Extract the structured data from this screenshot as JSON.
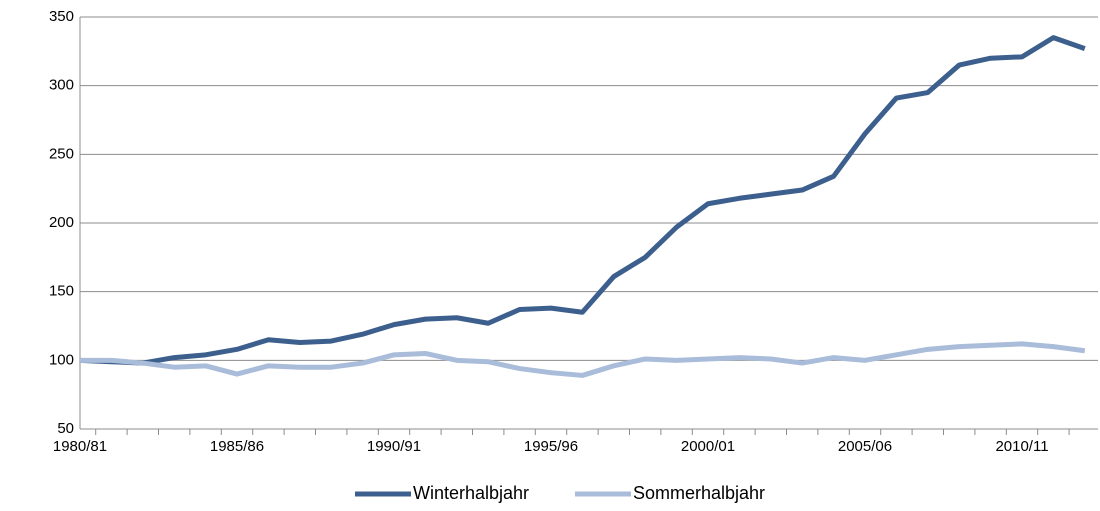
{
  "chart_data": {
    "type": "line",
    "categories": [
      "1980/81",
      null,
      null,
      null,
      null,
      "1985/86",
      null,
      null,
      null,
      null,
      "1990/91",
      null,
      null,
      null,
      null,
      "1995/96",
      null,
      null,
      null,
      null,
      "2000/01",
      null,
      null,
      null,
      null,
      "2005/06",
      null,
      null,
      null,
      null,
      "2010/11",
      null,
      null
    ],
    "series": [
      {
        "name": "Winterhalbjahr",
        "color": "#3d5f8d",
        "values": [
          100,
          99,
          98,
          102,
          104,
          108,
          115,
          113,
          114,
          119,
          126,
          130,
          131,
          127,
          137,
          138,
          135,
          161,
          175,
          197,
          214,
          218,
          221,
          224,
          234,
          265,
          291,
          295,
          315,
          320,
          321,
          335,
          327
        ]
      },
      {
        "name": "Sommerhalbjahr",
        "color": "#a9bcd9",
        "values": [
          100,
          100,
          98,
          95,
          96,
          90,
          96,
          95,
          95,
          98,
          104,
          105,
          100,
          99,
          94,
          91,
          89,
          96,
          101,
          100,
          101,
          102,
          101,
          98,
          102,
          100,
          104,
          108,
          110,
          111,
          112,
          110,
          107
        ]
      }
    ],
    "ylim": [
      50,
      350
    ],
    "yticks": [
      50,
      100,
      150,
      200,
      250,
      300,
      350
    ],
    "grid": true,
    "legend": "bottom"
  }
}
